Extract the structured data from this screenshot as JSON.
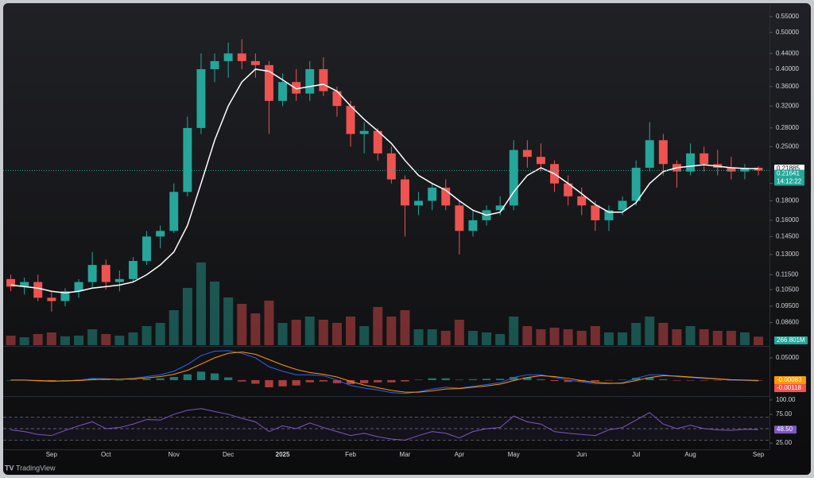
{
  "chart_data": {
    "type": "candlestick",
    "categories": [
      null,
      null,
      null,
      "Sep",
      null,
      null,
      null,
      "Oct",
      null,
      null,
      null,
      null,
      "Nov",
      null,
      null,
      null,
      "Dec",
      null,
      null,
      null,
      "2025",
      null,
      null,
      null,
      null,
      "Feb",
      null,
      null,
      null,
      "Mar",
      null,
      null,
      null,
      "Apr",
      null,
      null,
      null,
      "May",
      null,
      null,
      null,
      null,
      "Jun",
      null,
      null,
      null,
      "Jul",
      null,
      null,
      null,
      "Aug",
      null,
      null,
      null,
      null,
      "Sep"
    ],
    "open": [
      0.112,
      0.107,
      0.11,
      0.1,
      0.098,
      0.104,
      0.11,
      0.122,
      0.11,
      0.112,
      0.125,
      0.145,
      0.15,
      0.19,
      0.28,
      0.4,
      0.42,
      0.44,
      0.42,
      0.41,
      0.33,
      0.37,
      0.345,
      0.4,
      0.35,
      0.32,
      0.27,
      0.275,
      0.24,
      0.205,
      0.175,
      0.18,
      0.195,
      0.175,
      0.15,
      0.16,
      0.17,
      0.175,
      0.245,
      0.235,
      0.225,
      0.2,
      0.185,
      0.175,
      0.16,
      0.17,
      0.18,
      0.22,
      0.26,
      0.225,
      0.215,
      0.24,
      0.225,
      0.22,
      0.215,
      0.22
    ],
    "high": [
      0.115,
      0.113,
      0.115,
      0.104,
      0.106,
      0.112,
      0.132,
      0.126,
      0.118,
      0.128,
      0.15,
      0.155,
      0.2,
      0.3,
      0.44,
      0.44,
      0.47,
      0.48,
      0.44,
      0.42,
      0.39,
      0.4,
      0.42,
      0.43,
      0.36,
      0.33,
      0.29,
      0.28,
      0.25,
      0.21,
      0.19,
      0.2,
      0.205,
      0.18,
      0.17,
      0.175,
      0.185,
      0.26,
      0.26,
      0.255,
      0.23,
      0.21,
      0.195,
      0.18,
      0.175,
      0.185,
      0.23,
      0.29,
      0.27,
      0.23,
      0.255,
      0.25,
      0.245,
      0.235,
      0.225,
      0.222
    ],
    "low": [
      0.104,
      0.102,
      0.098,
      0.092,
      0.095,
      0.1,
      0.106,
      0.105,
      0.104,
      0.11,
      0.122,
      0.135,
      0.148,
      0.185,
      0.27,
      0.37,
      0.38,
      0.4,
      0.38,
      0.27,
      0.32,
      0.33,
      0.33,
      0.34,
      0.3,
      0.25,
      0.24,
      0.23,
      0.2,
      0.145,
      0.165,
      0.17,
      0.17,
      0.13,
      0.145,
      0.155,
      0.165,
      0.17,
      0.22,
      0.215,
      0.19,
      0.175,
      0.165,
      0.15,
      0.15,
      0.165,
      0.175,
      0.215,
      0.21,
      0.195,
      0.21,
      0.215,
      0.21,
      0.205,
      0.205,
      0.21
    ],
    "close": [
      0.107,
      0.11,
      0.1,
      0.098,
      0.104,
      0.11,
      0.122,
      0.11,
      0.112,
      0.125,
      0.145,
      0.15,
      0.19,
      0.28,
      0.4,
      0.42,
      0.44,
      0.42,
      0.41,
      0.33,
      0.37,
      0.345,
      0.4,
      0.35,
      0.32,
      0.27,
      0.275,
      0.24,
      0.205,
      0.175,
      0.18,
      0.195,
      0.175,
      0.15,
      0.16,
      0.17,
      0.175,
      0.245,
      0.235,
      0.225,
      0.2,
      0.185,
      0.175,
      0.16,
      0.17,
      0.18,
      0.22,
      0.26,
      0.225,
      0.215,
      0.24,
      0.225,
      0.22,
      0.215,
      0.22,
      0.21641
    ],
    "ma": [
      0.108,
      0.107,
      0.106,
      0.104,
      0.103,
      0.104,
      0.106,
      0.107,
      0.108,
      0.11,
      0.115,
      0.122,
      0.132,
      0.155,
      0.2,
      0.26,
      0.32,
      0.37,
      0.4,
      0.395,
      0.375,
      0.355,
      0.36,
      0.365,
      0.35,
      0.32,
      0.295,
      0.275,
      0.255,
      0.23,
      0.21,
      0.2,
      0.192,
      0.18,
      0.17,
      0.165,
      0.168,
      0.19,
      0.21,
      0.22,
      0.212,
      0.2,
      0.188,
      0.176,
      0.168,
      0.168,
      0.178,
      0.2,
      0.215,
      0.22,
      0.222,
      0.224,
      0.222,
      0.22,
      0.219,
      0.21885
    ],
    "volume": [
      300,
      250,
      350,
      400,
      280,
      300,
      500,
      350,
      300,
      400,
      600,
      700,
      1100,
      1800,
      2600,
      2000,
      1500,
      1300,
      1000,
      1400,
      700,
      800,
      900,
      800,
      700,
      900,
      600,
      1200,
      900,
      1100,
      500,
      500,
      450,
      800,
      450,
      400,
      350,
      900,
      600,
      500,
      550,
      500,
      450,
      600,
      400,
      400,
      700,
      900,
      700,
      500,
      600,
      500,
      450,
      450,
      400,
      266.801
    ],
    "volume_label": "266.801M",
    "countdown": "14:12:22",
    "up_color": "#26a69a",
    "down_color": "#ef5350",
    "ma_color": "#ffffff",
    "log_scale": true,
    "ylim": [
      0.075,
      0.594
    ],
    "yticks": [
      {
        "value": 0.55,
        "label": "0.55000"
      },
      {
        "value": 0.5,
        "label": "0.50000"
      },
      {
        "value": 0.44,
        "label": "0.44000"
      },
      {
        "value": 0.4,
        "label": "0.40000"
      },
      {
        "value": 0.36,
        "label": "0.36000"
      },
      {
        "value": 0.32,
        "label": "0.32000"
      },
      {
        "value": 0.28,
        "label": "0.28000"
      },
      {
        "value": 0.25,
        "label": "0.25000"
      },
      {
        "value": 0.2,
        "label": "0.20000"
      },
      {
        "value": 0.18,
        "label": "0.18000"
      },
      {
        "value": 0.16,
        "label": "0.16000"
      },
      {
        "value": 0.145,
        "label": "0.14500"
      },
      {
        "value": 0.13,
        "label": "0.13000"
      },
      {
        "value": 0.115,
        "label": "0.11500"
      },
      {
        "value": 0.105,
        "label": "0.10500"
      },
      {
        "value": 0.095,
        "label": "0.09500"
      },
      {
        "value": 0.086,
        "label": "0.08600"
      }
    ],
    "volume_ylim": [
      0,
      4000
    ],
    "macd": {
      "macd": [
        0,
        0,
        -0.002,
        -0.003,
        -0.002,
        0,
        0.004,
        0.003,
        0.002,
        0.004,
        0.008,
        0.012,
        0.02,
        0.035,
        0.055,
        0.065,
        0.066,
        0.06,
        0.05,
        0.03,
        0.02,
        0.012,
        0.012,
        0.01,
        0,
        -0.012,
        -0.018,
        -0.022,
        -0.028,
        -0.03,
        -0.026,
        -0.02,
        -0.016,
        -0.018,
        -0.014,
        -0.01,
        -0.006,
        0.006,
        0.012,
        0.012,
        0.006,
        0,
        -0.004,
        -0.008,
        -0.008,
        -0.006,
        0.004,
        0.012,
        0.012,
        0.008,
        0.006,
        0.004,
        0.002,
        0,
        -0.0005,
        -0.00201
      ],
      "signal": [
        0,
        0,
        -0.001,
        -0.002,
        -0.002,
        -0.001,
        0.001,
        0.002,
        0.002,
        0.003,
        0.005,
        0.008,
        0.013,
        0.022,
        0.036,
        0.05,
        0.06,
        0.063,
        0.058,
        0.046,
        0.034,
        0.024,
        0.017,
        0.013,
        0.007,
        -0.003,
        -0.011,
        -0.017,
        -0.023,
        -0.027,
        -0.027,
        -0.024,
        -0.02,
        -0.019,
        -0.016,
        -0.013,
        -0.009,
        -0.001,
        0.006,
        0.01,
        0.008,
        0.004,
        -0.001,
        -0.005,
        -0.007,
        -0.007,
        -0.001,
        0.006,
        0.01,
        0.009,
        0.007,
        0.005,
        0.003,
        0.001,
        0,
        -0.00083
      ],
      "hist": [
        0,
        0,
        -0.001,
        -0.001,
        0,
        0.001,
        0.003,
        0.001,
        0,
        0.001,
        0.003,
        0.004,
        0.007,
        0.013,
        0.019,
        0.015,
        0.006,
        -0.003,
        -0.008,
        -0.016,
        -0.014,
        -0.012,
        -0.005,
        -0.003,
        -0.007,
        -0.009,
        -0.007,
        -0.005,
        -0.005,
        -0.003,
        0.001,
        0.004,
        0.004,
        0.001,
        0.002,
        0.003,
        0.003,
        0.007,
        0.006,
        0.002,
        -0.002,
        -0.004,
        -0.003,
        -0.003,
        -0.001,
        0.001,
        0.005,
        0.006,
        0.002,
        -0.001,
        -0.001,
        -0.001,
        -0.001,
        -0.001,
        -0.0005,
        -0.00118
      ],
      "macd_color": "#2962ff",
      "signal_color": "#ff9800",
      "ylim": [
        -0.034,
        0.073
      ],
      "yticks": [
        {
          "value": 0.05,
          "label": "0.05000"
        }
      ]
    },
    "rsi": {
      "values": [
        48,
        45,
        40,
        38,
        47,
        55,
        62,
        50,
        52,
        58,
        66,
        65,
        75,
        82,
        85,
        80,
        75,
        68,
        62,
        45,
        55,
        50,
        60,
        52,
        45,
        38,
        42,
        36,
        32,
        30,
        38,
        45,
        42,
        34,
        45,
        50,
        52,
        72,
        62,
        58,
        45,
        42,
        40,
        38,
        48,
        52,
        65,
        78,
        58,
        50,
        56,
        50,
        48,
        47,
        49,
        48.5
      ],
      "last_label": "48.50",
      "color": "#7e57c2",
      "ylim": [
        14,
        104
      ],
      "yticks": [
        {
          "value": 100,
          "label": "100.00"
        },
        {
          "value": 75,
          "label": "75.00"
        },
        {
          "value": 25,
          "label": "25.00"
        }
      ],
      "bands": [
        70,
        50,
        30
      ]
    },
    "brand": "TradingView"
  }
}
